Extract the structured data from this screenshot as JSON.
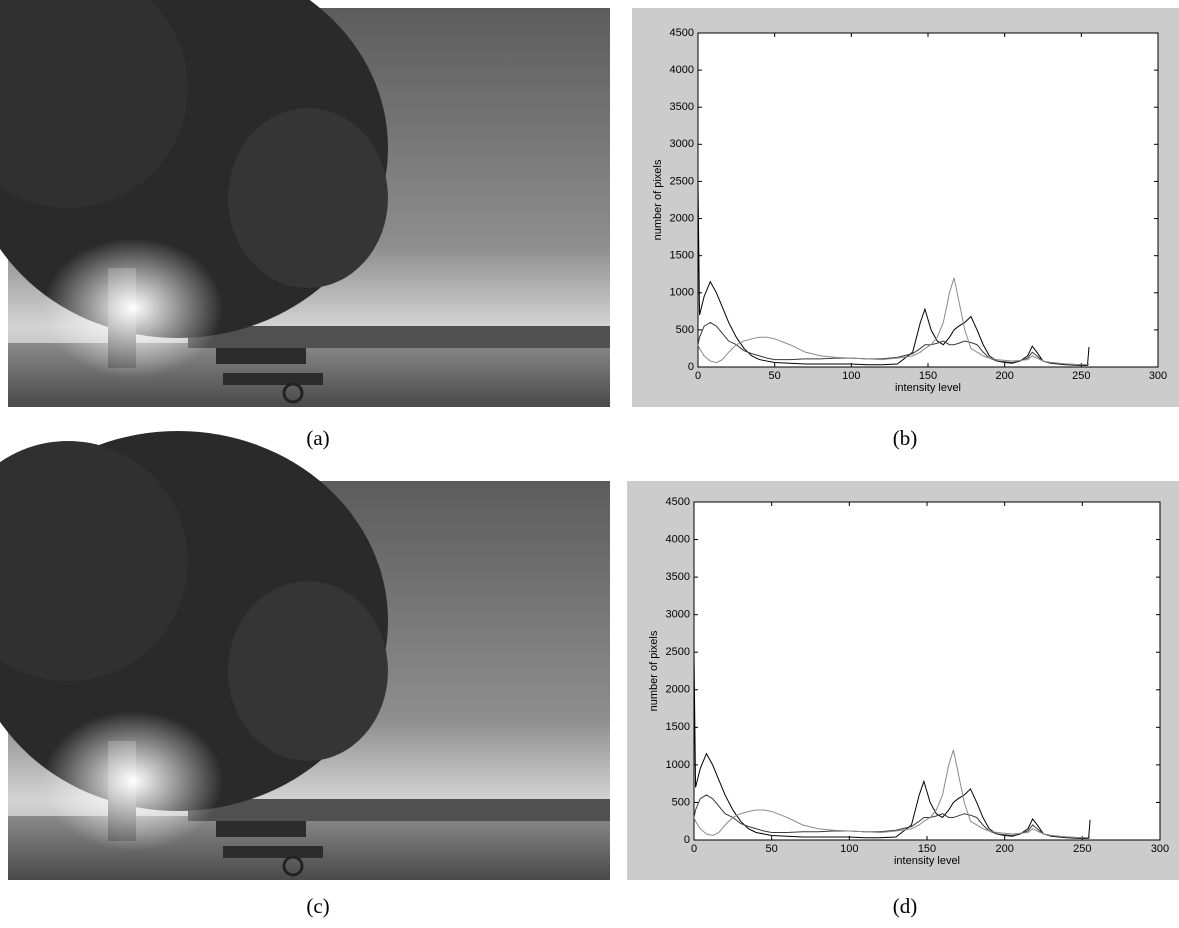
{
  "chart_data": [
    {
      "type": "line",
      "xlabel": "intensity level",
      "ylabel": "number of pixels",
      "x": [
        0,
        1,
        4,
        8,
        12,
        16,
        20,
        25,
        30,
        35,
        40,
        45,
        50,
        60,
        70,
        80,
        90,
        100,
        110,
        120,
        130,
        140,
        145,
        148,
        152,
        156,
        160,
        164,
        167,
        170,
        174,
        178,
        182,
        186,
        190,
        195,
        200,
        205,
        210,
        215,
        218,
        221,
        225,
        230,
        240,
        250,
        254,
        255
      ],
      "series": [
        {
          "color": "#000000",
          "values": [
            2500,
            700,
            950,
            1150,
            1000,
            800,
            600,
            400,
            250,
            150,
            100,
            80,
            60,
            50,
            40,
            40,
            40,
            40,
            30,
            30,
            40,
            200,
            600,
            780,
            500,
            350,
            300,
            400,
            500,
            550,
            600,
            680,
            500,
            300,
            150,
            80,
            60,
            50,
            80,
            150,
            280,
            200,
            80,
            50,
            30,
            20,
            20,
            270
          ]
        },
        {
          "color": "#3a3a3a",
          "values": [
            300,
            400,
            550,
            600,
            550,
            450,
            350,
            300,
            220,
            180,
            150,
            120,
            100,
            100,
            110,
            110,
            120,
            120,
            110,
            110,
            130,
            180,
            250,
            300,
            300,
            320,
            350,
            300,
            300,
            320,
            350,
            330,
            300,
            200,
            120,
            80,
            70,
            60,
            80,
            120,
            200,
            150,
            80,
            60,
            40,
            30,
            30,
            40
          ]
        },
        {
          "color": "#8a8a8a",
          "values": [
            300,
            250,
            150,
            80,
            60,
            100,
            200,
            300,
            350,
            380,
            400,
            400,
            380,
            300,
            200,
            150,
            130,
            120,
            110,
            100,
            120,
            150,
            200,
            250,
            300,
            400,
            600,
            1000,
            1200,
            900,
            500,
            250,
            200,
            150,
            120,
            100,
            90,
            80,
            90,
            100,
            150,
            120,
            80,
            60,
            40,
            30,
            30,
            30
          ]
        }
      ],
      "xlim": [
        0,
        300
      ],
      "xticks": [
        0,
        50,
        100,
        150,
        200,
        250,
        300
      ],
      "ylim": [
        0,
        4500
      ],
      "yticks": [
        0,
        500,
        1000,
        1500,
        2000,
        2500,
        3000,
        3500,
        4000,
        4500
      ]
    },
    {
      "type": "line",
      "xlabel": "intensity level",
      "ylabel": "number of pixels",
      "x": [
        0,
        1,
        4,
        8,
        12,
        16,
        20,
        25,
        30,
        35,
        40,
        45,
        50,
        60,
        70,
        80,
        90,
        100,
        110,
        120,
        130,
        140,
        145,
        148,
        152,
        156,
        160,
        164,
        167,
        170,
        174,
        178,
        182,
        186,
        190,
        195,
        200,
        205,
        210,
        215,
        218,
        221,
        225,
        230,
        240,
        250,
        254,
        255
      ],
      "series": [
        {
          "color": "#000000",
          "values": [
            2500,
            700,
            950,
            1150,
            1000,
            800,
            600,
            400,
            250,
            150,
            100,
            80,
            60,
            50,
            40,
            40,
            40,
            40,
            30,
            30,
            40,
            200,
            600,
            780,
            500,
            350,
            300,
            400,
            500,
            550,
            600,
            680,
            500,
            300,
            150,
            80,
            60,
            50,
            80,
            150,
            280,
            200,
            80,
            50,
            30,
            20,
            20,
            270
          ]
        },
        {
          "color": "#3a3a3a",
          "values": [
            300,
            400,
            550,
            600,
            550,
            450,
            350,
            300,
            220,
            180,
            150,
            120,
            100,
            100,
            110,
            110,
            120,
            120,
            110,
            110,
            130,
            180,
            250,
            300,
            300,
            320,
            350,
            300,
            300,
            320,
            350,
            330,
            300,
            200,
            120,
            80,
            70,
            60,
            80,
            120,
            200,
            150,
            80,
            60,
            40,
            30,
            30,
            40
          ]
        },
        {
          "color": "#8a8a8a",
          "values": [
            300,
            250,
            150,
            80,
            60,
            100,
            200,
            300,
            350,
            380,
            400,
            400,
            380,
            300,
            200,
            150,
            130,
            120,
            110,
            100,
            120,
            150,
            200,
            250,
            300,
            400,
            600,
            1000,
            1200,
            900,
            500,
            250,
            200,
            150,
            120,
            100,
            90,
            80,
            90,
            100,
            150,
            120,
            80,
            60,
            40,
            30,
            30,
            30
          ]
        }
      ],
      "xlim": [
        0,
        300
      ],
      "xticks": [
        0,
        50,
        100,
        150,
        200,
        250,
        300
      ],
      "ylim": [
        0,
        4500
      ],
      "yticks": [
        0,
        500,
        1000,
        1500,
        2000,
        2500,
        3000,
        3500,
        4000,
        4500
      ]
    }
  ],
  "captions": [
    "(a)",
    "(b)",
    "(c)",
    "(d)"
  ]
}
